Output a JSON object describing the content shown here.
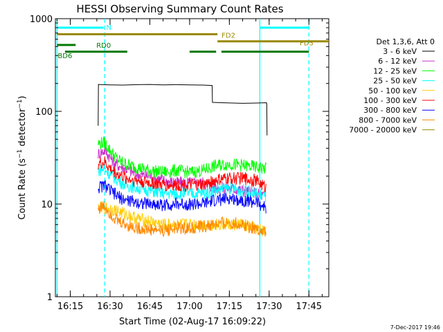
{
  "chart_data": {
    "type": "line",
    "title": "HESSI Observing Summary Count Rates",
    "xlabel": "Start Time (02-Aug-17 16:09:22)",
    "ylabel_parts": [
      "Count Rate (s",
      "−1",
      " detector",
      "−1",
      ")"
    ],
    "y_scale": "log",
    "ylim": [
      1,
      1000
    ],
    "y_ticks": [
      {
        "value": 1,
        "label": "1"
      },
      {
        "value": 10,
        "label": "10"
      },
      {
        "value": 100,
        "label": "100"
      },
      {
        "value": 1000,
        "label": "1000"
      }
    ],
    "xlim_min": [
      969.37,
      1072.5
    ],
    "x_ticks": [
      {
        "value": 975,
        "label": "16:15"
      },
      {
        "value": 990,
        "label": "16:30"
      },
      {
        "value": 1005,
        "label": "16:45"
      },
      {
        "value": 1020,
        "label": "17:00"
      },
      {
        "value": 1035,
        "label": "17:15"
      },
      {
        "value": 1050,
        "label": "17:30"
      },
      {
        "value": 1065,
        "label": "17:45"
      }
    ],
    "legend_title": "Det 1,3,6, Att 0",
    "series": [
      {
        "name": "3 - 6 keV",
        "color": "#000000",
        "points": [
          [
            985.5,
            70
          ],
          [
            985.6,
            195
          ],
          [
            990,
            193
          ],
          [
            995,
            192
          ],
          [
            1000,
            194
          ],
          [
            1005,
            195
          ],
          [
            1010,
            193
          ],
          [
            1015,
            194
          ],
          [
            1020,
            193
          ],
          [
            1025,
            192
          ],
          [
            1028.5,
            190
          ],
          [
            1028.6,
            125
          ],
          [
            1032,
            124
          ],
          [
            1040,
            122
          ],
          [
            1045,
            123
          ],
          [
            1049,
            124
          ],
          [
            1049.1,
            120
          ],
          [
            1049.2,
            55
          ]
        ]
      },
      {
        "name": "6 - 12 keV",
        "color": "#cc33cc",
        "points": [
          [
            985.5,
            35
          ],
          [
            988,
            38
          ],
          [
            992,
            27
          ],
          [
            996,
            24
          ],
          [
            1000,
            21
          ],
          [
            1005,
            20
          ],
          [
            1010,
            18
          ],
          [
            1015,
            17
          ],
          [
            1020,
            17
          ],
          [
            1025,
            17
          ],
          [
            1030,
            15
          ],
          [
            1035,
            15
          ],
          [
            1040,
            14
          ],
          [
            1045,
            13
          ],
          [
            1049,
            12
          ]
        ]
      },
      {
        "name": "12 - 25 keV",
        "color": "#00ff00",
        "points": [
          [
            985.5,
            45
          ],
          [
            988,
            46
          ],
          [
            990,
            38
          ],
          [
            993,
            30
          ],
          [
            996,
            27
          ],
          [
            1000,
            25
          ],
          [
            1005,
            23
          ],
          [
            1010,
            22
          ],
          [
            1015,
            23
          ],
          [
            1020,
            22
          ],
          [
            1025,
            23
          ],
          [
            1030,
            26
          ],
          [
            1035,
            27
          ],
          [
            1040,
            26
          ],
          [
            1045,
            25
          ],
          [
            1049,
            24
          ]
        ]
      },
      {
        "name": "25 - 50 keV",
        "color": "#00ffff",
        "points": [
          [
            985.5,
            23
          ],
          [
            988,
            24
          ],
          [
            990,
            21
          ],
          [
            993,
            18
          ],
          [
            996,
            16
          ],
          [
            1000,
            15
          ],
          [
            1005,
            14
          ],
          [
            1010,
            13
          ],
          [
            1015,
            13
          ],
          [
            1020,
            13
          ],
          [
            1025,
            13
          ],
          [
            1030,
            14
          ],
          [
            1035,
            15
          ],
          [
            1040,
            14
          ],
          [
            1045,
            13
          ],
          [
            1049,
            12
          ]
        ]
      },
      {
        "name": "50 - 100 keV",
        "color": "#ffcc00",
        "points": [
          [
            985.5,
            9
          ],
          [
            990,
            9
          ],
          [
            1000,
            7
          ],
          [
            1010,
            6
          ],
          [
            1020,
            6
          ],
          [
            1030,
            6
          ],
          [
            1040,
            6
          ],
          [
            1049,
            5
          ]
        ]
      },
      {
        "name": "100 - 300 keV",
        "color": "#ff0000",
        "points": [
          [
            985.5,
            27
          ],
          [
            988,
            28
          ],
          [
            990,
            24
          ],
          [
            993,
            21
          ],
          [
            996,
            19
          ],
          [
            1000,
            18
          ],
          [
            1005,
            17
          ],
          [
            1010,
            16
          ],
          [
            1015,
            16
          ],
          [
            1020,
            16
          ],
          [
            1025,
            16
          ],
          [
            1030,
            18
          ],
          [
            1035,
            19
          ],
          [
            1040,
            19
          ],
          [
            1045,
            18
          ],
          [
            1049,
            15
          ]
        ]
      },
      {
        "name": "300 - 800 keV",
        "color": "#0000ff",
        "points": [
          [
            985.5,
            15
          ],
          [
            988,
            16
          ],
          [
            990,
            14
          ],
          [
            993,
            12
          ],
          [
            996,
            11
          ],
          [
            1000,
            10.5
          ],
          [
            1005,
            10
          ],
          [
            1010,
            9.8
          ],
          [
            1015,
            10
          ],
          [
            1020,
            10
          ],
          [
            1025,
            10
          ],
          [
            1030,
            11
          ],
          [
            1035,
            11.5
          ],
          [
            1040,
            11
          ],
          [
            1045,
            10.5
          ],
          [
            1049,
            9
          ]
        ]
      },
      {
        "name": "800 - 7000 keV",
        "color": "#ff8800",
        "points": [
          [
            985.5,
            9
          ],
          [
            988,
            9.5
          ],
          [
            990,
            8
          ],
          [
            993,
            6.5
          ],
          [
            996,
            6
          ],
          [
            1000,
            5.5
          ],
          [
            1005,
            5.3
          ],
          [
            1010,
            5.2
          ],
          [
            1015,
            5.5
          ],
          [
            1020,
            5.5
          ],
          [
            1025,
            5.7
          ],
          [
            1030,
            6
          ],
          [
            1035,
            6.3
          ],
          [
            1040,
            6
          ],
          [
            1045,
            5.5
          ],
          [
            1049,
            4.8
          ]
        ]
      },
      {
        "name": "7000 - 20000 keV",
        "color": "#998800",
        "points": []
      }
    ],
    "annotations": [
      {
        "label": "N",
        "color": "#00ffff",
        "segments": [
          [
            970,
            987.5
          ],
          [
            1046.5,
            1065
          ]
        ],
        "y": 800
      },
      {
        "label": "FD2",
        "color": "#998800",
        "segments": [
          [
            970,
            1030.5
          ]
        ],
        "y": 680
      },
      {
        "label": "FD3",
        "color": "#998800",
        "segments": [
          [
            1030.5,
            1072.5
          ]
        ],
        "y": 570
      },
      {
        "label": "RD0",
        "color": "#007700",
        "segments": [
          [
            970,
            977
          ]
        ],
        "y": 520
      },
      {
        "label": "BD6",
        "color": "#007700",
        "segments": [
          [
            973,
            996.5
          ],
          [
            1020,
            1030
          ],
          [
            1032,
            1065
          ]
        ],
        "y": 440
      }
    ],
    "vlines": [
      {
        "x": 970,
        "color": "#00ffff",
        "style": "solid"
      },
      {
        "x": 988,
        "color": "#00ffff",
        "style": "dashed"
      },
      {
        "x": 1046.5,
        "color": "#00ffff",
        "style": "solid"
      },
      {
        "x": 1065,
        "color": "#00ffff",
        "style": "dashed"
      }
    ],
    "footer": "7-Dec-2017 19:46"
  }
}
